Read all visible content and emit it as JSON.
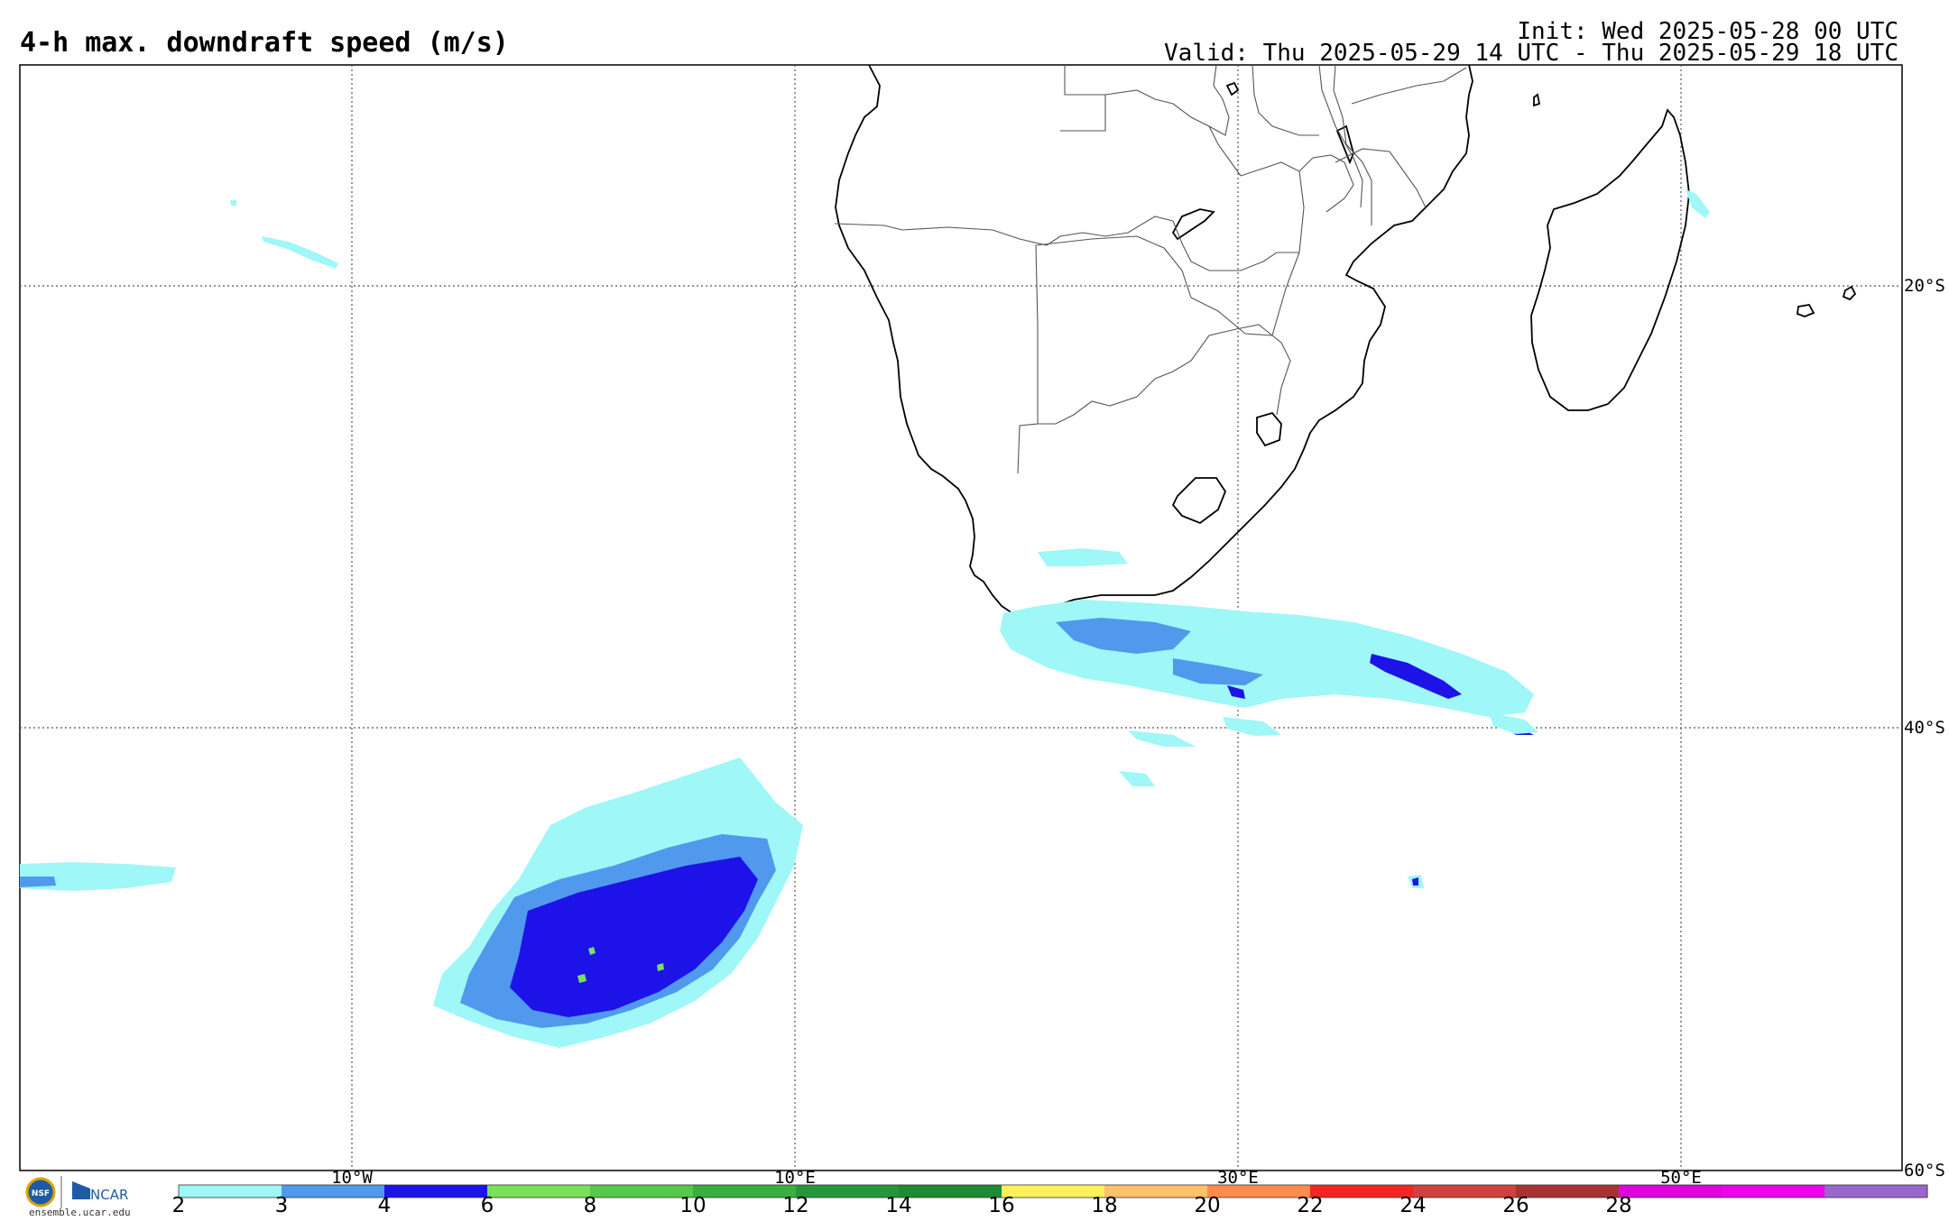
{
  "title": "4-h max. downdraft speed (m/s)",
  "init": "Init: Wed 2025-05-28 00 UTC",
  "valid": "Valid: Thu 2025-05-29 14 UTC - Thu 2025-05-29 18 UTC",
  "grid": {
    "lon_labels": [
      "10°W",
      "10°E",
      "30°E",
      "50°E"
    ],
    "lat_labels": [
      "20°S",
      "40°S",
      "60°S"
    ]
  },
  "colorbar": {
    "colors": [
      "#9ff7f7",
      "#5099ec",
      "#1d13e8",
      "#7ae05a",
      "#56c94a",
      "#3aae3f",
      "#25963a",
      "#1e8a34",
      "#fff258",
      "#ffc26a",
      "#ff8c4d",
      "#f22424",
      "#d13f3f",
      "#a83232",
      "#e000e0",
      "#ee00ee",
      "#9a66cc"
    ],
    "tick_labels": [
      "2",
      "3",
      "4",
      "6",
      "8",
      "10",
      "12",
      "14",
      "16",
      "18",
      "20",
      "22",
      "24",
      "26",
      "28"
    ]
  },
  "logos": {
    "nsf": "NSF",
    "ncar": "NCAR",
    "site": "ensemble.ucar.edu"
  }
}
